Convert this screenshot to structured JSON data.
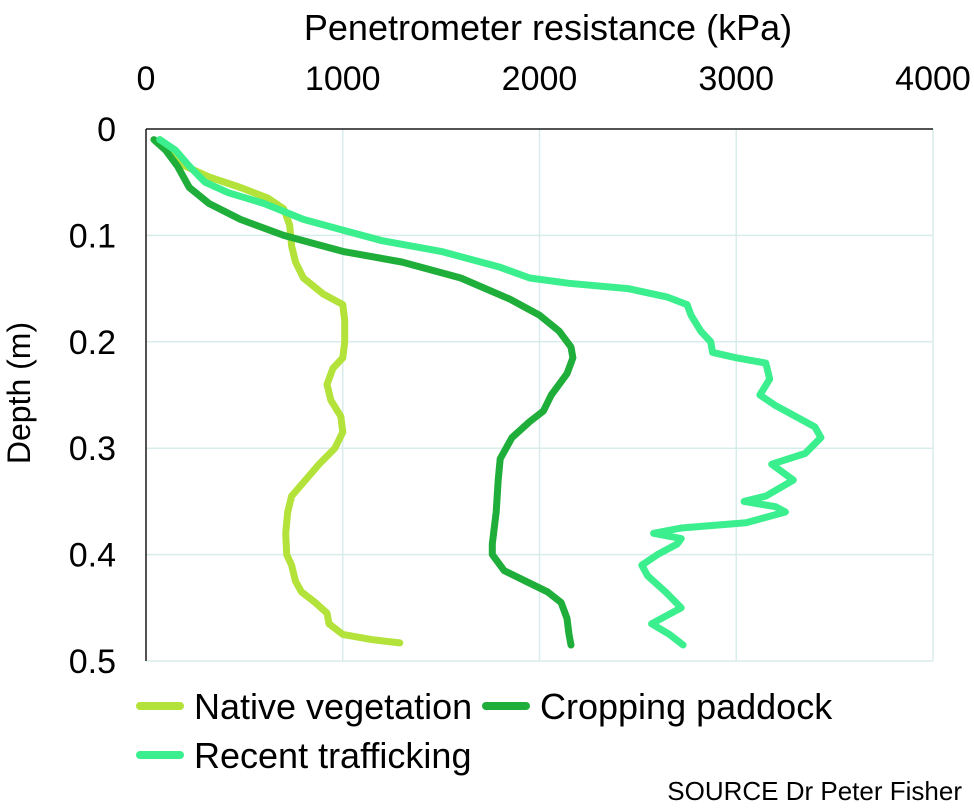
{
  "chart_data": {
    "type": "line",
    "xlabel": "Penetrometer resistance (kPa)",
    "ylabel": "Depth (m)",
    "x_axis_position": "top",
    "y_axis_inverted": true,
    "xlim": [
      0,
      4000
    ],
    "ylim": [
      0,
      0.5
    ],
    "x_ticks": [
      "0",
      "1000",
      "2000",
      "3000",
      "4000"
    ],
    "y_ticks": [
      "0",
      "0.1",
      "0.2",
      "0.3",
      "0.4",
      "0.5"
    ],
    "grid": true,
    "legend_position": "bottom",
    "source": "SOURCE Dr Peter Fisher",
    "series": [
      {
        "name": "Native vegetation",
        "color": "#b3e23a",
        "points": [
          [
            70,
            0.01
          ],
          [
            130,
            0.02
          ],
          [
            200,
            0.035
          ],
          [
            320,
            0.045
          ],
          [
            480,
            0.055
          ],
          [
            620,
            0.065
          ],
          [
            700,
            0.075
          ],
          [
            730,
            0.09
          ],
          [
            740,
            0.11
          ],
          [
            760,
            0.125
          ],
          [
            800,
            0.14
          ],
          [
            900,
            0.155
          ],
          [
            1000,
            0.165
          ],
          [
            1010,
            0.18
          ],
          [
            1010,
            0.2
          ],
          [
            1000,
            0.215
          ],
          [
            950,
            0.225
          ],
          [
            920,
            0.24
          ],
          [
            940,
            0.255
          ],
          [
            990,
            0.27
          ],
          [
            1000,
            0.285
          ],
          [
            960,
            0.3
          ],
          [
            880,
            0.315
          ],
          [
            810,
            0.33
          ],
          [
            740,
            0.345
          ],
          [
            720,
            0.36
          ],
          [
            710,
            0.38
          ],
          [
            715,
            0.4
          ],
          [
            740,
            0.41
          ],
          [
            760,
            0.425
          ],
          [
            790,
            0.435
          ],
          [
            860,
            0.445
          ],
          [
            920,
            0.455
          ],
          [
            930,
            0.465
          ],
          [
            1000,
            0.475
          ],
          [
            1150,
            0.48
          ],
          [
            1290,
            0.483
          ]
        ]
      },
      {
        "name": "Cropping paddock",
        "color": "#1fae3a",
        "points": [
          [
            40,
            0.01
          ],
          [
            100,
            0.02
          ],
          [
            160,
            0.035
          ],
          [
            220,
            0.055
          ],
          [
            320,
            0.07
          ],
          [
            480,
            0.085
          ],
          [
            700,
            0.1
          ],
          [
            1000,
            0.115
          ],
          [
            1300,
            0.125
          ],
          [
            1600,
            0.14
          ],
          [
            1850,
            0.16
          ],
          [
            2000,
            0.175
          ],
          [
            2100,
            0.19
          ],
          [
            2160,
            0.205
          ],
          [
            2170,
            0.215
          ],
          [
            2140,
            0.23
          ],
          [
            2060,
            0.25
          ],
          [
            2020,
            0.265
          ],
          [
            1950,
            0.275
          ],
          [
            1860,
            0.29
          ],
          [
            1800,
            0.31
          ],
          [
            1790,
            0.33
          ],
          [
            1780,
            0.36
          ],
          [
            1760,
            0.39
          ],
          [
            1760,
            0.4
          ],
          [
            1820,
            0.415
          ],
          [
            1930,
            0.425
          ],
          [
            2040,
            0.435
          ],
          [
            2110,
            0.445
          ],
          [
            2140,
            0.46
          ],
          [
            2150,
            0.475
          ],
          [
            2160,
            0.485
          ]
        ]
      },
      {
        "name": "Recent trafficking",
        "color": "#3bef8e",
        "points": [
          [
            70,
            0.01
          ],
          [
            150,
            0.02
          ],
          [
            220,
            0.035
          ],
          [
            300,
            0.05
          ],
          [
            420,
            0.06
          ],
          [
            600,
            0.07
          ],
          [
            800,
            0.085
          ],
          [
            1000,
            0.095
          ],
          [
            1200,
            0.105
          ],
          [
            1500,
            0.115
          ],
          [
            1800,
            0.13
          ],
          [
            1950,
            0.14
          ],
          [
            2150,
            0.145
          ],
          [
            2450,
            0.15
          ],
          [
            2650,
            0.158
          ],
          [
            2750,
            0.165
          ],
          [
            2770,
            0.175
          ],
          [
            2820,
            0.19
          ],
          [
            2870,
            0.2
          ],
          [
            2880,
            0.21
          ],
          [
            3000,
            0.215
          ],
          [
            3150,
            0.22
          ],
          [
            3170,
            0.235
          ],
          [
            3120,
            0.25
          ],
          [
            3200,
            0.26
          ],
          [
            3400,
            0.28
          ],
          [
            3430,
            0.29
          ],
          [
            3350,
            0.305
          ],
          [
            3180,
            0.315
          ],
          [
            3290,
            0.33
          ],
          [
            3150,
            0.345
          ],
          [
            3040,
            0.35
          ],
          [
            3200,
            0.355
          ],
          [
            3250,
            0.36
          ],
          [
            3050,
            0.37
          ],
          [
            2720,
            0.375
          ],
          [
            2580,
            0.38
          ],
          [
            2720,
            0.385
          ],
          [
            2700,
            0.39
          ],
          [
            2600,
            0.4
          ],
          [
            2520,
            0.41
          ],
          [
            2550,
            0.42
          ],
          [
            2640,
            0.435
          ],
          [
            2720,
            0.45
          ],
          [
            2620,
            0.46
          ],
          [
            2570,
            0.465
          ],
          [
            2660,
            0.475
          ],
          [
            2730,
            0.485
          ]
        ]
      }
    ]
  }
}
